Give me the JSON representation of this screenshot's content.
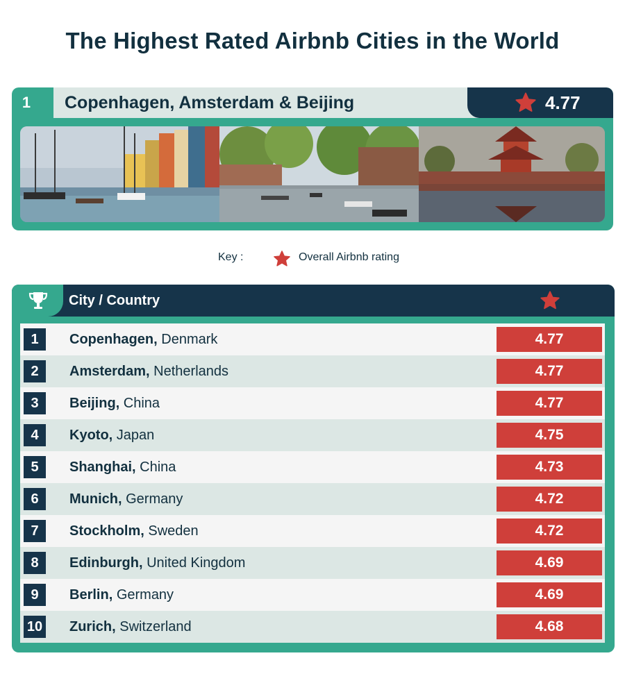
{
  "title": "The Highest Rated Airbnb Cities in the World",
  "colors": {
    "navy": "#16344a",
    "teal": "#35a88e",
    "red": "#cf3f3a",
    "light_row": "#f5f5f5",
    "alt_row": "#dce7e4"
  },
  "top_feature": {
    "rank": "1",
    "label": "Copenhagen, Amsterdam & Beijing",
    "rating": "4.77",
    "photos": [
      {
        "icon": "copenhagen-harbour-photo"
      },
      {
        "icon": "amsterdam-canal-photo"
      },
      {
        "icon": "beijing-forbidden-city-photo"
      }
    ]
  },
  "key": {
    "label": "Key :",
    "rating_label": "Overall Airbnb rating"
  },
  "table": {
    "header_city": "City / Country"
  },
  "chart_data": {
    "type": "table",
    "title": "The Highest Rated Airbnb Cities in the World",
    "columns": [
      "Rank",
      "City / Country",
      "Overall Airbnb rating"
    ],
    "rows": [
      {
        "rank": "1",
        "city": "Copenhagen",
        "country": "Denmark",
        "rating": "4.77"
      },
      {
        "rank": "2",
        "city": "Amsterdam",
        "country": "Netherlands",
        "rating": "4.77"
      },
      {
        "rank": "3",
        "city": "Beijing",
        "country": "China",
        "rating": "4.77"
      },
      {
        "rank": "4",
        "city": "Kyoto",
        "country": "Japan",
        "rating": "4.75"
      },
      {
        "rank": "5",
        "city": "Shanghai",
        "country": "China",
        "rating": "4.73"
      },
      {
        "rank": "6",
        "city": "Munich",
        "country": "Germany",
        "rating": "4.72"
      },
      {
        "rank": "7",
        "city": "Stockholm",
        "country": "Sweden",
        "rating": "4.72"
      },
      {
        "rank": "8",
        "city": "Edinburgh",
        "country": "United Kingdom",
        "rating": "4.69"
      },
      {
        "rank": "9",
        "city": "Berlin",
        "country": "Germany",
        "rating": "4.69"
      },
      {
        "rank": "10",
        "city": "Zurich",
        "country": "Switzerland",
        "rating": "4.68"
      }
    ]
  }
}
